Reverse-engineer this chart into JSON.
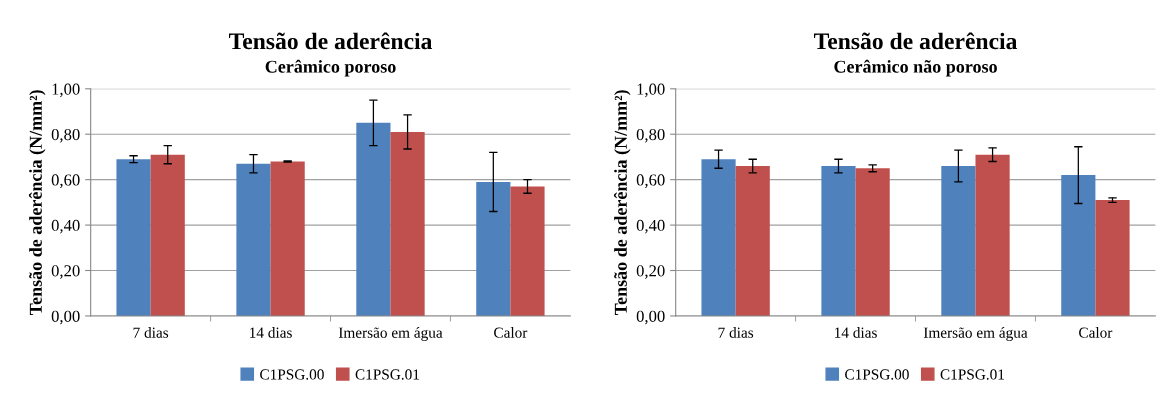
{
  "chart_data": [
    {
      "type": "bar",
      "title": "Tensão de aderência",
      "subtitle": "Cerâmico poroso",
      "ylabel": "Tensão de aderência (N/mm²)",
      "categories": [
        "7 dias",
        "14 dias",
        "Imersão em água",
        "Calor"
      ],
      "series": [
        {
          "name": "C1PSG.00",
          "color": "#4f81bd",
          "values": [
            0.69,
            0.67,
            0.85,
            0.59
          ],
          "errors": [
            0.015,
            0.04,
            0.1,
            0.13
          ]
        },
        {
          "name": "C1PSG.01",
          "color": "#c0504d",
          "values": [
            0.71,
            0.68,
            0.81,
            0.57
          ],
          "errors": [
            0.04,
            0.002,
            0.075,
            0.03
          ]
        }
      ],
      "ylim": [
        0,
        1
      ],
      "yticks": [
        {
          "value": 0,
          "label": "0,00"
        },
        {
          "value": 0.2,
          "label": "0,20"
        },
        {
          "value": 0.4,
          "label": "0,40"
        },
        {
          "value": 0.6,
          "label": "0,60"
        },
        {
          "value": 0.8,
          "label": "0,80"
        },
        {
          "value": 1,
          "label": "1,00"
        }
      ],
      "grid": "y",
      "legend": "bottom"
    },
    {
      "type": "bar",
      "title": "Tensão de aderência",
      "subtitle": "Cerâmico não poroso",
      "ylabel": "Tensão de aderência (N/mm²)",
      "categories": [
        "7 dias",
        "14 dias",
        "Imersão em água",
        "Calor"
      ],
      "series": [
        {
          "name": "C1PSG.00",
          "color": "#4f81bd",
          "values": [
            0.69,
            0.66,
            0.66,
            0.62
          ],
          "errors": [
            0.04,
            0.03,
            0.07,
            0.125
          ]
        },
        {
          "name": "C1PSG.01",
          "color": "#c0504d",
          "values": [
            0.66,
            0.65,
            0.71,
            0.51
          ],
          "errors": [
            0.03,
            0.015,
            0.03,
            0.01
          ]
        }
      ],
      "ylim": [
        0,
        1
      ],
      "yticks": [
        {
          "value": 0,
          "label": "0,00"
        },
        {
          "value": 0.2,
          "label": "0,20"
        },
        {
          "value": 0.4,
          "label": "0,40"
        },
        {
          "value": 0.6,
          "label": "0,60"
        },
        {
          "value": 0.8,
          "label": "0,80"
        },
        {
          "value": 1,
          "label": "1,00"
        }
      ],
      "grid": "y",
      "legend": "bottom"
    }
  ]
}
